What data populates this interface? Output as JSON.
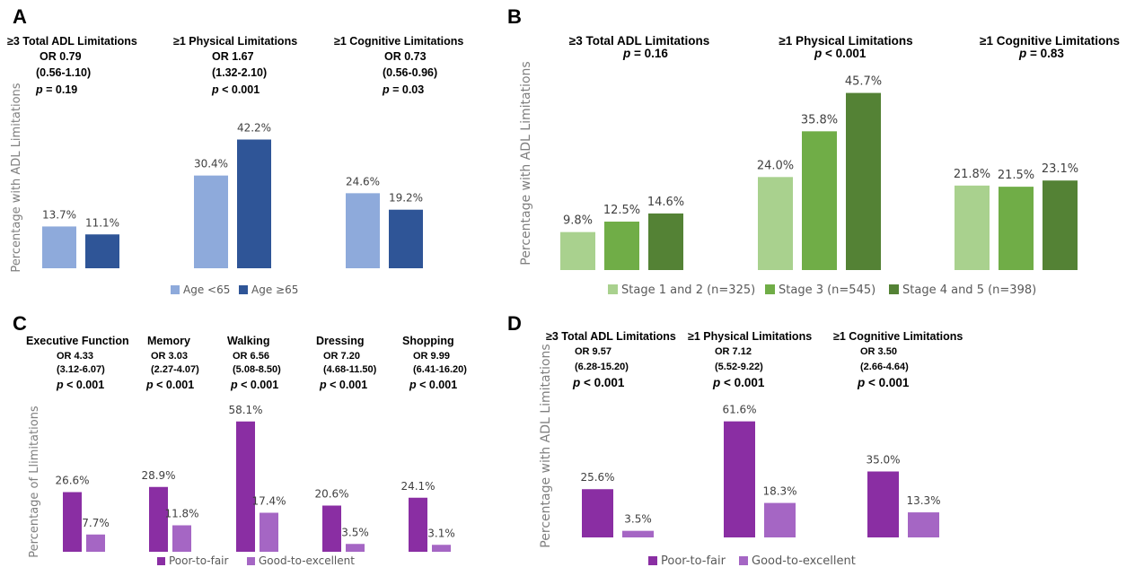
{
  "chart_data": [
    {
      "panel": "A",
      "type": "bar",
      "ylabel": "Percentage with ADL Limitations",
      "series": [
        {
          "name": "Age <65",
          "values": [
            13.7,
            30.4,
            24.6
          ],
          "labels": [
            "13.7%",
            "30.4%",
            "24.6%"
          ]
        },
        {
          "name": "Age ≥65",
          "values": [
            11.1,
            42.2,
            19.2
          ],
          "labels": [
            "11.1%",
            "42.2%",
            "19.2%"
          ]
        }
      ],
      "colors": [
        "#8eaadb",
        "#2f5597"
      ],
      "groups": [
        {
          "lines": [
            {
              "text": "≥3 Total ADL Limitations",
              "b": true,
              "i": false
            },
            {
              "text": "OR 0.79",
              "b": true,
              "i": false
            },
            {
              "text": "(0.56-1.10)",
              "b": true,
              "i": false
            },
            {
              "text": "p",
              "b": true,
              "i": true,
              "rest": " = 0.19"
            }
          ]
        },
        {
          "lines": [
            {
              "text": "≥1 Physical Limitations",
              "b": true,
              "i": false
            },
            {
              "text": "OR 1.67",
              "b": true,
              "i": false
            },
            {
              "text": "(1.32-2.10)",
              "b": true,
              "i": false
            },
            {
              "text": "p",
              "b": true,
              "i": true,
              "rest": " < 0.001"
            }
          ]
        },
        {
          "lines": [
            {
              "text": "≥1 Cognitive Limitations",
              "b": true,
              "i": false
            },
            {
              "text": "OR 0.73",
              "b": true,
              "i": false
            },
            {
              "text": "(0.56-0.96)",
              "b": true,
              "i": false
            },
            {
              "text": "p",
              "b": true,
              "i": true,
              "rest": " = 0.03"
            }
          ]
        }
      ]
    },
    {
      "panel": "B",
      "type": "bar",
      "ylabel": "Percentage with ADL Limitations",
      "series": [
        {
          "name": "Stage 1 and 2 (n=325)",
          "values": [
            9.8,
            24.0,
            21.8
          ],
          "labels": [
            "9.8%",
            "24.0%",
            "21.8%"
          ]
        },
        {
          "name": "Stage 3 (n=545)",
          "values": [
            12.5,
            35.8,
            21.5
          ],
          "labels": [
            "12.5%",
            "35.8%",
            "21.5%"
          ]
        },
        {
          "name": "Stage 4 and 5 (n=398)",
          "values": [
            14.6,
            45.7,
            23.1
          ],
          "labels": [
            "14.6%",
            "45.7%",
            "23.1%"
          ]
        }
      ],
      "colors": [
        "#a9d18e",
        "#70ad47",
        "#548235"
      ],
      "groups": [
        {
          "title": "≥3 Total ADL Limitations",
          "p": " = 0.16"
        },
        {
          "title": "≥1 Physical Limitations",
          "p": " < 0.001"
        },
        {
          "title": "≥1 Cognitive Limitations",
          "p": " = 0.83"
        }
      ]
    },
    {
      "panel": "C",
      "type": "bar",
      "ylabel": "Percentage of Llimitations",
      "series": [
        {
          "name": "Poor-to-fair",
          "values": [
            26.6,
            28.9,
            58.1,
            20.6,
            24.1
          ],
          "labels": [
            "26.6%",
            "28.9%",
            "58.1%",
            "20.6%",
            "24.1%"
          ]
        },
        {
          "name": "Good-to-excellent",
          "values": [
            7.7,
            11.8,
            17.4,
            3.5,
            3.1
          ],
          "labels": [
            "7.7%",
            "11.8%",
            "17.4%",
            "3.5%",
            "3.1%"
          ]
        }
      ],
      "colors": [
        "#8a2ea3",
        "#a566c4"
      ],
      "groups": [
        {
          "title": "Executive Function",
          "or": "OR 4.33",
          "ci": "(3.12-6.07)",
          "p": " < 0.001"
        },
        {
          "title": "Memory",
          "or": "OR 3.03",
          "ci": "(2.27-4.07)",
          "p": " < 0.001"
        },
        {
          "title": "Walking",
          "or": "OR 6.56",
          "ci": "(5.08-8.50)",
          "p": " < 0.001"
        },
        {
          "title": "Dressing",
          "or": "OR 7.20",
          "ci": "(4.68-11.50)",
          "p": " < 0.001"
        },
        {
          "title": "Shopping",
          "or": "OR 9.99",
          "ci": "(6.41-16.20)",
          "p": " < 0.001"
        }
      ]
    },
    {
      "panel": "D",
      "type": "bar",
      "ylabel": "Percentage with ADL Limitations",
      "series": [
        {
          "name": "Poor-to-fair",
          "values": [
            25.6,
            61.6,
            35.0
          ],
          "labels": [
            "25.6%",
            "61.6%",
            "35.0%"
          ]
        },
        {
          "name": "Good-to-excellent",
          "values": [
            3.5,
            18.3,
            13.3
          ],
          "labels": [
            "3.5%",
            "18.3%",
            "13.3%"
          ]
        }
      ],
      "colors": [
        "#8a2ea3",
        "#a566c4"
      ],
      "groups": [
        {
          "title": "≥3 Total ADL Limitations",
          "or": "OR 9.57",
          "ci": "(6.28-15.20)",
          "p": " < 0.001"
        },
        {
          "title": "≥1 Physical Limitations",
          "or": "OR 7.12",
          "ci": "(5.52-9.22)",
          "p": " < 0.001"
        },
        {
          "title": "≥1 Cognitive Limitations",
          "or": "OR 3.50",
          "ci": "(2.66-4.64)",
          "p": " < 0.001"
        }
      ]
    }
  ]
}
